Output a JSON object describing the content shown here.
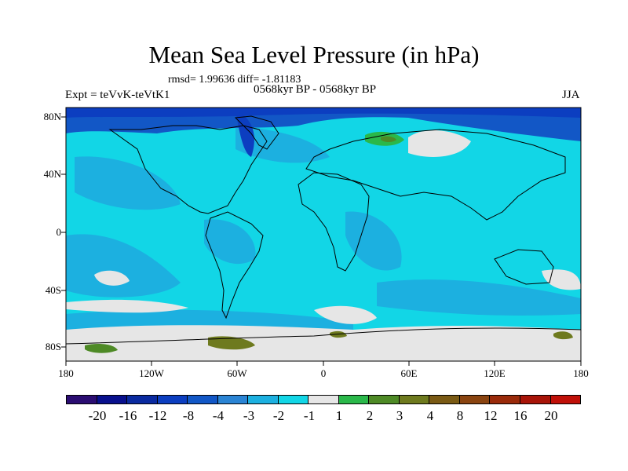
{
  "title": "Mean Sea Level Pressure (in hPa)",
  "stats": "rmsd= 1.99636 diff= -1.81183",
  "experiment": "Expt = teVvK-teVtK1",
  "period": "0568kyr BP - 0568kyr BP",
  "season": "JJA",
  "map": {
    "type": "filled contour anomaly map",
    "projection": "cylindrical equidistant",
    "lon_range": [
      -180,
      180
    ],
    "lat_range": [
      -90,
      90
    ],
    "y_ticks": [
      {
        "value": 80,
        "label": "80N"
      },
      {
        "value": 40,
        "label": "40N"
      },
      {
        "value": 0,
        "label": "0"
      },
      {
        "value": -40,
        "label": "40S"
      },
      {
        "value": -80,
        "label": "80S"
      }
    ],
    "x_ticks": [
      {
        "value": -180,
        "label": "180"
      },
      {
        "value": -120,
        "label": "120W"
      },
      {
        "value": -60,
        "label": "60W"
      },
      {
        "value": 0,
        "label": "0"
      },
      {
        "value": 60,
        "label": "60E"
      },
      {
        "value": 120,
        "label": "120E"
      },
      {
        "value": 180,
        "label": "180"
      }
    ]
  },
  "colorbar": {
    "colors": [
      "#2b0d72",
      "#08108d",
      "#0a2aa0",
      "#0c3ec0",
      "#1257c6",
      "#2a84d4",
      "#1cb0e0",
      "#12d6e6",
      "#e6e6e6",
      "#2ab84a",
      "#4e8a26",
      "#6e7a1e",
      "#7a5a14",
      "#8a4410",
      "#9a2a0a",
      "#a81408",
      "#c01008"
    ],
    "labels": [
      "-20",
      "-16",
      "-12",
      "-8",
      "-4",
      "-3",
      "-2",
      "-1",
      "1",
      "2",
      "3",
      "4",
      "8",
      "12",
      "16",
      "20"
    ]
  }
}
